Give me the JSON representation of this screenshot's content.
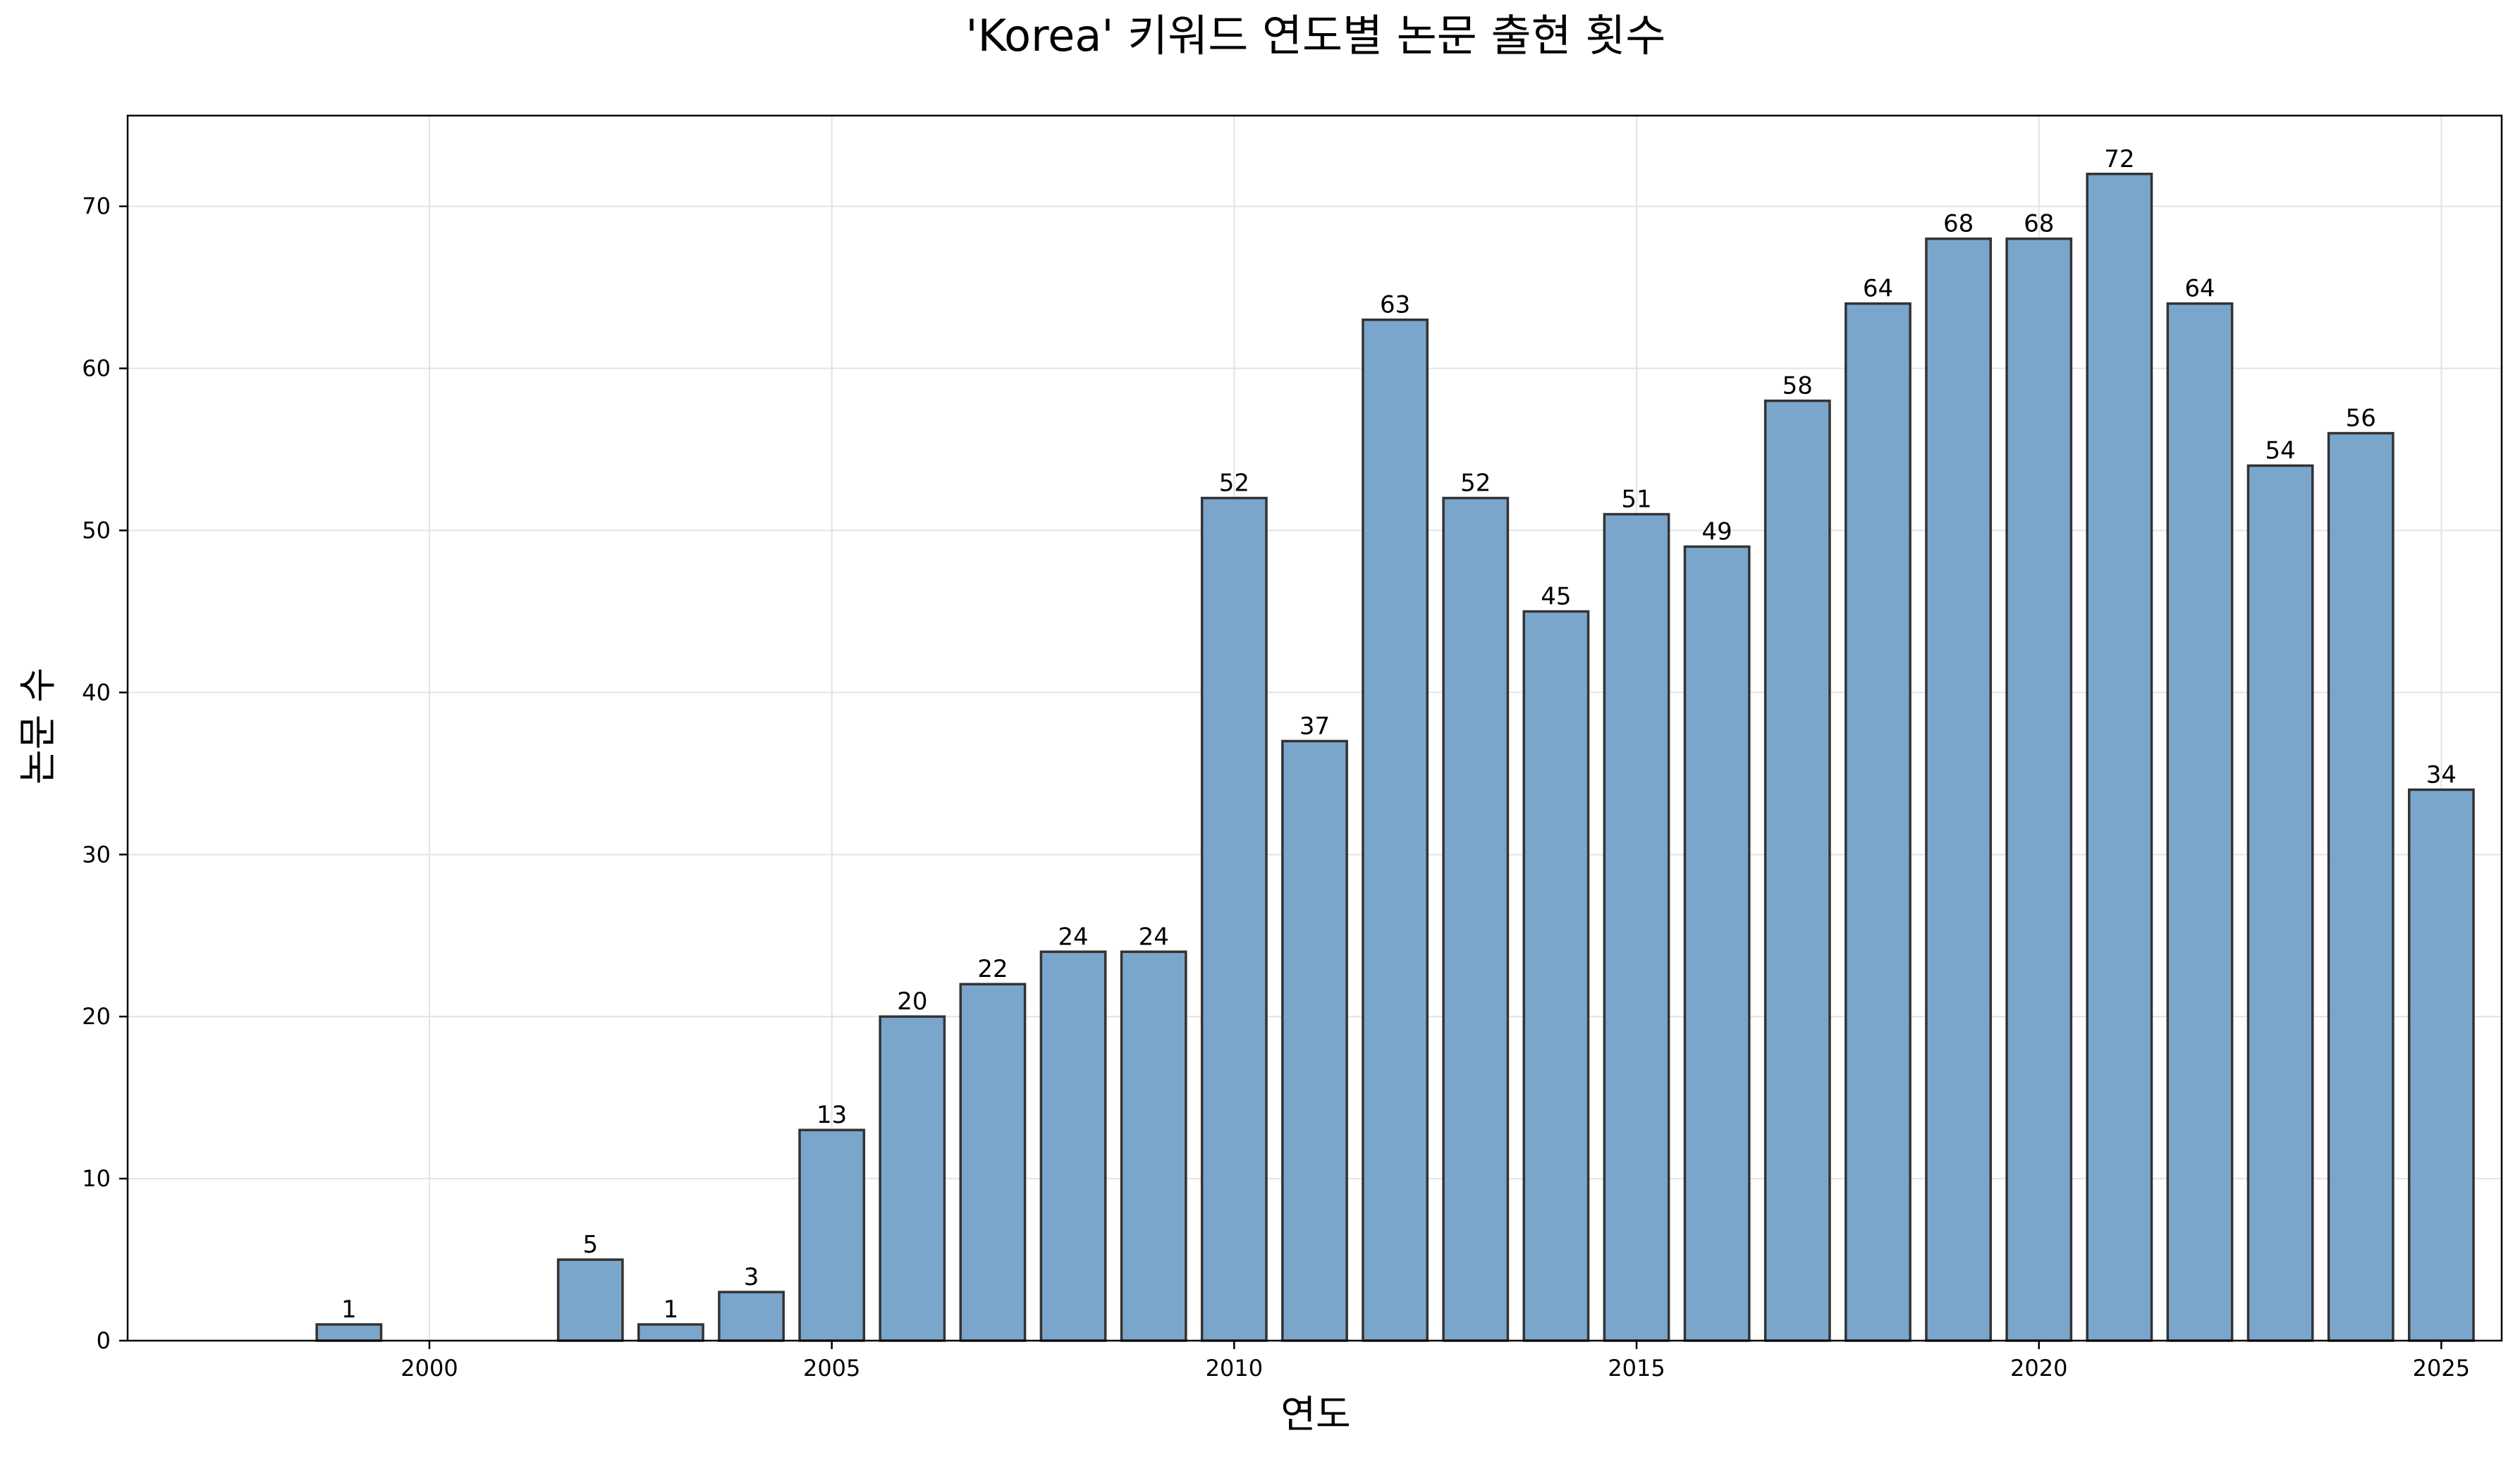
{
  "chart_data": {
    "type": "bar",
    "title": "'Korea' 키워드 연도별 논문 출현 횟수",
    "xlabel": "연도",
    "ylabel": "논문 수",
    "x": [
      1999,
      2002,
      2003,
      2004,
      2005,
      2006,
      2007,
      2008,
      2009,
      2010,
      2011,
      2012,
      2013,
      2014,
      2015,
      2016,
      2017,
      2018,
      2019,
      2020,
      2021,
      2022,
      2023,
      2024,
      2025
    ],
    "values": [
      1,
      5,
      1,
      3,
      13,
      20,
      22,
      24,
      24,
      52,
      37,
      63,
      52,
      45,
      51,
      49,
      58,
      64,
      68,
      68,
      72,
      64,
      54,
      56,
      34
    ],
    "xlim": [
      1996.25,
      2025.75
    ],
    "ylim": [
      0,
      75.6
    ],
    "xticks": [
      2000,
      2005,
      2010,
      2015,
      2020,
      2025
    ],
    "yticks": [
      0,
      10,
      20,
      30,
      40,
      50,
      60,
      70
    ],
    "grid": true,
    "bar_color": "#7ba6cc",
    "edge_color": "#333333",
    "grid_color": "#e3e3e3"
  }
}
